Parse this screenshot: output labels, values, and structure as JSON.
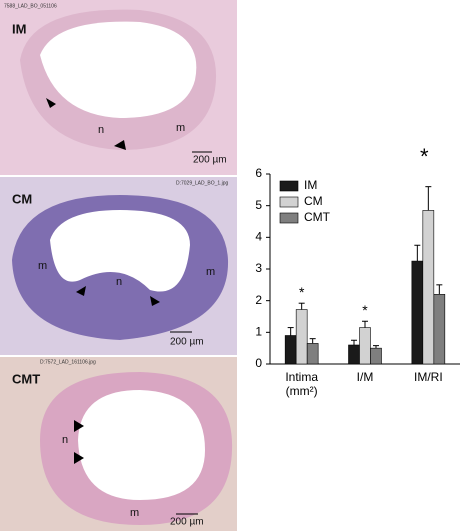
{
  "panels": [
    {
      "filename": "7588_LAD_BO_051106",
      "label": "IM",
      "annotations": [
        "n",
        "m"
      ],
      "scale_bar": "200 µm"
    },
    {
      "filename": "D:7029_LAD_BO_1.jpg",
      "label": "CM",
      "annotations": [
        "m",
        "n",
        "m"
      ],
      "scale_bar": "200 µm"
    },
    {
      "filename": "D:7572_LAD_161106.jpg",
      "label": "CMT",
      "annotations": [
        "n",
        "m"
      ],
      "scale_bar": "200 µm"
    }
  ],
  "chart_data": {
    "type": "bar",
    "categories": [
      "Intima (mm²)",
      "I/M",
      "IM/RI"
    ],
    "series": [
      {
        "name": "IM",
        "color": "#1a1a1a",
        "values": [
          0.9,
          0.6,
          3.25
        ],
        "errors": [
          0.25,
          0.15,
          0.5
        ]
      },
      {
        "name": "CM",
        "color": "#d2d2d2",
        "values": [
          1.72,
          1.15,
          4.85
        ],
        "errors": [
          0.2,
          0.2,
          0.75
        ]
      },
      {
        "name": "CMT",
        "color": "#7f7f7f",
        "values": [
          0.65,
          0.5,
          2.2
        ],
        "errors": [
          0.15,
          0.08,
          0.3
        ]
      }
    ],
    "annotations": [
      {
        "text": "*",
        "category": 0,
        "series": 1
      },
      {
        "text": "*",
        "category": 1,
        "series": 1
      },
      {
        "text": "*",
        "category": 2,
        "series": 1
      }
    ],
    "ylim": [
      0,
      6
    ],
    "yticks": [
      0,
      1,
      2,
      3,
      4,
      5,
      6
    ],
    "legend": "top-left"
  }
}
